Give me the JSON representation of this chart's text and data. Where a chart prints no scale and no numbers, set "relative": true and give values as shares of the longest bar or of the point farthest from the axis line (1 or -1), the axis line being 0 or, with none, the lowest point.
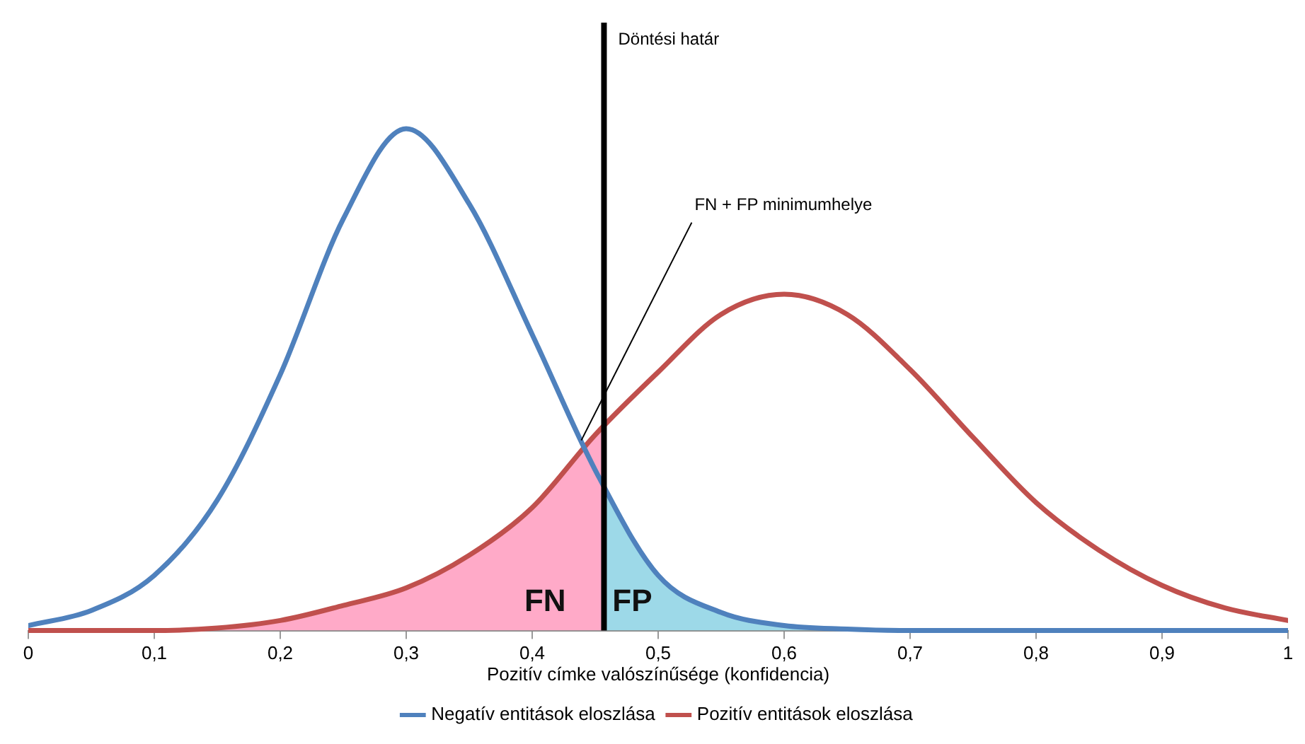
{
  "chart_data": {
    "type": "line",
    "relative": true,
    "xlabel": "Pozitív címke valószínűsége (konfidencia)",
    "xlim": [
      0,
      1
    ],
    "xticks": [
      0,
      {
        "value": 0.1,
        "label": "0,1"
      },
      {
        "value": 0.2,
        "label": "0,2"
      },
      {
        "value": 0.3,
        "label": "0,3"
      },
      {
        "value": 0.4,
        "label": "0,4"
      },
      {
        "value": 0.5,
        "label": "0,5"
      },
      {
        "value": 0.6,
        "label": "0,6"
      },
      {
        "value": 0.7,
        "label": "0,7"
      },
      {
        "value": 0.8,
        "label": "0,8"
      },
      {
        "value": 0.9,
        "label": "0,9"
      },
      1
    ],
    "x": [
      0,
      0.05,
      0.1,
      0.15,
      0.2,
      0.25,
      0.3,
      0.35,
      0.4,
      0.45,
      0.5,
      0.55,
      0.6,
      0.65,
      0.7,
      0.75,
      0.8,
      0.85,
      0.9,
      0.95,
      1
    ],
    "series": [
      {
        "type": "area",
        "name": "FN",
        "color": "#ffaac8",
        "x": [
          0,
          0.05,
          0.1,
          0.15,
          0.2,
          0.25,
          0.3,
          0.35,
          0.4,
          0.45,
          0.457
        ],
        "values": [
          0,
          0,
          0,
          0.005,
          0.02,
          0.05,
          0.085,
          0.15,
          0.245,
          0.39,
          0.405
        ]
      },
      {
        "type": "area",
        "name": "FP",
        "color": "#9dd9e8",
        "x": [
          0.457,
          0.5,
          0.55,
          0.6,
          0.65,
          0.7,
          0.75,
          0.8,
          0.85,
          0.9,
          0.95,
          1
        ],
        "values": [
          0.29,
          0.11,
          0.036,
          0.01,
          0.003,
          0,
          0,
          0,
          0,
          0,
          0,
          0
        ]
      },
      {
        "name": "Negatív entitások eloszlása",
        "color": "#4f81bd",
        "values": [
          0.01,
          0.04,
          0.11,
          0.26,
          0.51,
          0.82,
          1,
          0.85,
          0.59,
          0.32,
          0.11,
          0.036,
          0.01,
          0.003,
          0,
          0,
          0,
          0,
          0,
          0,
          0
        ]
      },
      {
        "name": "Pozitív entitások eloszlása",
        "color": "#c0504d",
        "values": [
          0,
          0,
          0,
          0.005,
          0.02,
          0.05,
          0.085,
          0.15,
          0.245,
          0.39,
          0.515,
          0.63,
          0.67,
          0.63,
          0.52,
          0.385,
          0.255,
          0.16,
          0.09,
          0.045,
          0.02
        ]
      }
    ],
    "ref_lines": [
      {
        "axis": "x",
        "value": 0.457,
        "label": "Döntési határ",
        "color": "#000000"
      }
    ],
    "annotations": [
      {
        "text": "FN + FP minimumhelye",
        "x": 0.439,
        "y": 0.379
      }
    ],
    "legend": "bottom",
    "marker": "none",
    "line_style": "solid"
  }
}
